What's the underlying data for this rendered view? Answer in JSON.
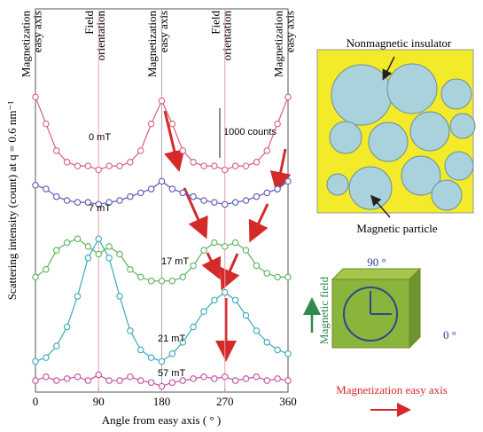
{
  "chart_data": {
    "type": "line",
    "x_label": "Angle from easy axis ( ° )",
    "y_label": "Scattering intensity (count) at q = 0.6 nm⁻¹",
    "x": [
      0,
      15,
      30,
      45,
      60,
      75,
      90,
      105,
      120,
      135,
      150,
      165,
      180,
      195,
      210,
      225,
      240,
      255,
      270,
      285,
      300,
      315,
      330,
      345,
      360
    ],
    "xlim": [
      0,
      360
    ],
    "xticks": [
      0,
      90,
      180,
      270,
      360
    ],
    "ylim": [
      0,
      100
    ],
    "scale_bar_label": "1000 counts",
    "annotations": [
      {
        "x": 0,
        "lines": [
          "Magnetization",
          "easy axis"
        ]
      },
      {
        "x": 90,
        "lines": [
          "Field",
          "orientation"
        ]
      },
      {
        "x": 180,
        "lines": [
          "Magnetization",
          "easy axis"
        ]
      },
      {
        "x": 270,
        "lines": [
          "Field",
          "orientation"
        ]
      },
      {
        "x": 360,
        "lines": [
          "Magnetization",
          "easy axis"
        ]
      }
    ],
    "series": [
      {
        "name": "0 mT",
        "color": "#d9607a",
        "values": [
          77,
          70,
          63,
          60,
          59,
          59,
          58,
          59,
          59,
          60,
          63,
          70,
          76,
          70,
          63,
          60,
          59,
          59,
          58,
          59,
          59,
          60,
          63,
          70,
          77
        ]
      },
      {
        "name": "7 mT",
        "color": "#5a5ab4",
        "values": [
          54,
          53,
          51,
          50,
          49.5,
          49.5,
          49,
          49.5,
          50,
          51,
          52,
          53,
          55,
          53,
          52,
          51,
          50,
          49.5,
          49,
          49.5,
          50,
          51,
          52,
          53,
          55
        ]
      },
      {
        "name": "17 mT",
        "color": "#5db35d",
        "values": [
          30,
          32,
          37,
          39,
          40,
          38,
          36,
          38,
          36,
          32,
          30,
          29,
          29,
          29,
          30,
          33,
          37,
          39,
          38,
          39,
          37,
          33,
          31,
          30,
          30
        ]
      },
      {
        "name": "21 mT",
        "color": "#3aa8b8",
        "values": [
          8,
          9,
          12,
          17,
          25,
          35,
          40,
          35,
          25,
          16,
          11,
          9,
          8,
          10,
          13,
          17,
          21,
          24,
          26,
          24,
          20,
          16,
          13,
          11,
          10
        ]
      },
      {
        "name": "57 mT",
        "color": "#c050a0",
        "values": [
          3,
          4,
          3,
          3.5,
          4,
          3,
          4.5,
          3,
          3,
          4,
          3,
          2.5,
          1.5,
          2.5,
          3,
          3.5,
          4,
          3.5,
          4,
          3,
          3.5,
          4,
          3,
          3.5,
          3
        ]
      }
    ]
  },
  "diagram": {
    "insulator_label": "Nonmagnetic insulator",
    "particle_label": "Magnetic particle",
    "field_label": "Magnetic field",
    "angle_90": "90 °",
    "angle_0": "0 °",
    "easy_axis_label": "Magnetization easy axis"
  }
}
